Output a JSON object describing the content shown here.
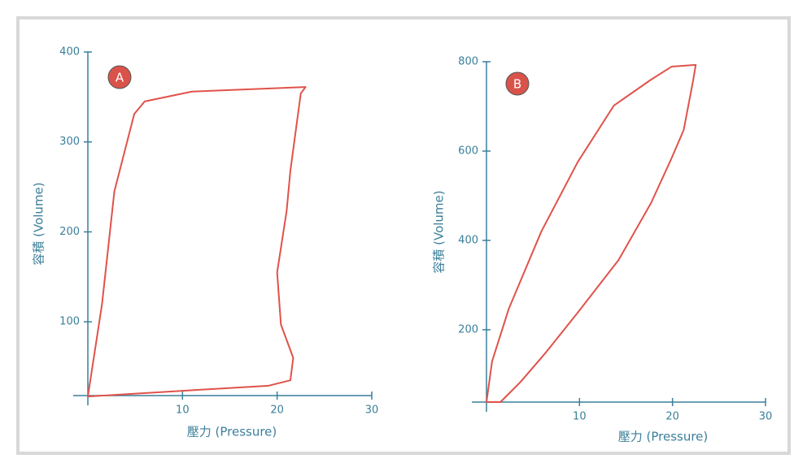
{
  "chart_data": [
    {
      "type": "line",
      "label": "A",
      "xlabel": "壓力 (Pressure)",
      "ylabel": "容積 (Volume)",
      "x": [
        0,
        1.5,
        2.8,
        4.9,
        6,
        11,
        23,
        22.5,
        21.4,
        21,
        20,
        20.4,
        21.7,
        21.4,
        19.1,
        7.9,
        0
      ],
      "values": [
        17,
        120,
        245,
        331,
        345,
        356,
        361,
        354,
        268,
        223,
        155,
        97,
        60,
        35,
        29,
        22,
        17
      ],
      "color": "#e0524a",
      "xlim": [
        0,
        30
      ],
      "ylim": [
        18,
        400
      ],
      "xticks": [
        10,
        20,
        30
      ],
      "yticks": [
        100,
        200,
        300,
        400
      ]
    },
    {
      "type": "line",
      "label": "B",
      "xlabel": "壓力 (Pressure)",
      "ylabel": "容積 (Volume)",
      "x": [
        0,
        0.6,
        2.4,
        5.9,
        9.8,
        13.7,
        17.7,
        19.9,
        22.5,
        22.2,
        21.2,
        19.9,
        17.7,
        14.2,
        9.8,
        6.3,
        3.7,
        1.5,
        0
      ],
      "values": [
        38,
        129,
        247,
        420,
        575,
        702,
        760,
        789,
        793,
        756,
        647,
        584,
        484,
        356,
        238,
        147,
        84,
        38,
        38
      ],
      "color": "#e0524a",
      "xlim": [
        0,
        30
      ],
      "ylim": [
        38,
        800
      ],
      "xticks": [
        10,
        20,
        30
      ],
      "yticks": [
        200,
        400,
        600,
        800
      ]
    }
  ]
}
